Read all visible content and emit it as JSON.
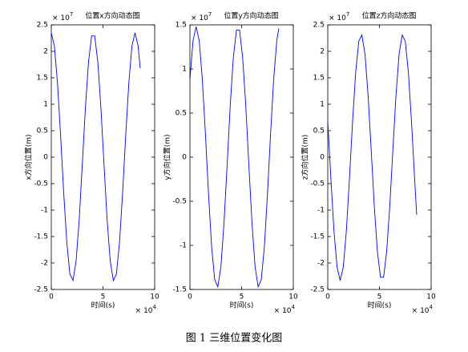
{
  "chart_data": [
    {
      "type": "line",
      "title": "位置x方向动态图",
      "x_label": "时间(s)",
      "y_label": "x方向位置(m)",
      "y_multiplier": "× 10",
      "y_exponent": "7",
      "x_multiplier": "× 10",
      "x_exponent": "4",
      "xlim": [
        0,
        10
      ],
      "xticks": [
        0,
        5,
        10
      ],
      "ylim": [
        -2.5,
        2.5
      ],
      "yticks": [
        -2.5,
        -2,
        -1.5,
        -1,
        -0.5,
        0,
        0.5,
        1,
        1.5,
        2,
        2.5
      ],
      "x": [
        0,
        0.3,
        0.6,
        0.9,
        1.2,
        1.5,
        1.8,
        2.1,
        2.4,
        2.7,
        3,
        3.3,
        3.6,
        3.9,
        4.2,
        4.5,
        4.8,
        5.1,
        5.4,
        5.7,
        6,
        6.3,
        6.6,
        6.9,
        7.2,
        7.5,
        7.8,
        8.1,
        8.4,
        8.6
      ],
      "values": [
        2.35,
        2.1,
        1.4,
        0.41,
        -0.67,
        -1.61,
        -2.21,
        -2.33,
        -1.96,
        -1.18,
        -0.14,
        0.93,
        1.8,
        2.29,
        2.29,
        1.8,
        0.93,
        -0.14,
        -1.18,
        -1.96,
        -2.33,
        -2.21,
        -1.61,
        -0.67,
        0.41,
        1.4,
        2.1,
        2.35,
        2.1,
        1.68
      ],
      "color": "#0000ff"
    },
    {
      "type": "line",
      "title": "位置y方向动态图",
      "x_label": "时间(s)",
      "y_label": "y方向位置(m)",
      "y_multiplier": "× 10",
      "y_exponent": "7",
      "x_multiplier": "× 10",
      "x_exponent": "4",
      "xlim": [
        0,
        10
      ],
      "xticks": [
        0,
        5,
        10
      ],
      "ylim": [
        -1.5,
        1.5
      ],
      "yticks": [
        -1.5,
        -1,
        -0.5,
        0,
        0.5,
        1,
        1.5
      ],
      "x": [
        0,
        0.3,
        0.6,
        0.9,
        1.2,
        1.5,
        1.8,
        2.1,
        2.4,
        2.7,
        3,
        3.3,
        3.6,
        3.9,
        4.2,
        4.5,
        4.8,
        5.1,
        5.4,
        5.7,
        6,
        6.3,
        6.6,
        6.9,
        7.2,
        7.5,
        7.8,
        8.1,
        8.4,
        8.6
      ],
      "values": [
        0.88,
        1.32,
        1.48,
        1.32,
        0.88,
        0.26,
        -0.42,
        -1.02,
        -1.39,
        -1.47,
        -1.24,
        -0.74,
        -0.09,
        0.59,
        1.13,
        1.44,
        1.44,
        1.13,
        0.59,
        -0.09,
        -0.74,
        -1.24,
        -1.47,
        -1.39,
        -1.02,
        -0.42,
        0.26,
        0.88,
        1.32,
        1.46
      ],
      "color": "#0000ff"
    },
    {
      "type": "line",
      "title": "位置z方向动态图",
      "x_label": "时间(s)",
      "y_label": "z方向位置(m)",
      "y_multiplier": "× 10",
      "y_exponent": "7",
      "x_multiplier": "× 10",
      "x_exponent": "4",
      "xlim": [
        0,
        10
      ],
      "xticks": [
        0,
        5,
        10
      ],
      "ylim": [
        -2.5,
        2.5
      ],
      "yticks": [
        -2.5,
        -2,
        -1.5,
        -1,
        -0.5,
        0,
        0.5,
        1,
        1.5,
        2,
        2.5
      ],
      "x": [
        0,
        0.3,
        0.6,
        0.9,
        1.2,
        1.5,
        1.8,
        2.1,
        2.4,
        2.7,
        3,
        3.3,
        3.6,
        3.9,
        4.2,
        4.5,
        4.8,
        5.1,
        5.4,
        5.7,
        6,
        6.3,
        6.6,
        6.9,
        7.2,
        7.5,
        7.8,
        8.1,
        8.4,
        8.6
      ],
      "values": [
        0.67,
        -0.4,
        -1.39,
        -2.08,
        -2.33,
        -2.08,
        -1.39,
        -0.4,
        0.67,
        1.6,
        2.19,
        2.31,
        1.95,
        1.17,
        0.14,
        -0.92,
        -1.78,
        -2.27,
        -2.27,
        -1.78,
        -0.92,
        0.14,
        1.17,
        1.95,
        2.31,
        2.19,
        1.6,
        0.67,
        -0.4,
        -1.09
      ],
      "color": "#0000ff"
    }
  ],
  "caption": "图 1  三维位置变化图"
}
